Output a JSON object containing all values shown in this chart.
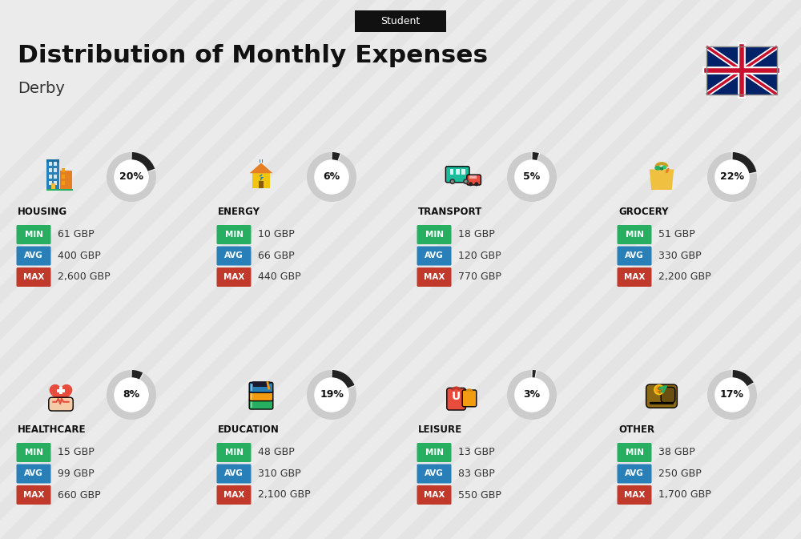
{
  "title": "Distribution of Monthly Expenses",
  "subtitle": "Derby",
  "label_top": "Student",
  "background_color": "#ebebeb",
  "categories": [
    {
      "name": "HOUSING",
      "percent": 20,
      "min_val": "61 GBP",
      "avg_val": "400 GBP",
      "max_val": "2,600 GBP",
      "row": 0,
      "col": 0
    },
    {
      "name": "ENERGY",
      "percent": 6,
      "min_val": "10 GBP",
      "avg_val": "66 GBP",
      "max_val": "440 GBP",
      "row": 0,
      "col": 1
    },
    {
      "name": "TRANSPORT",
      "percent": 5,
      "min_val": "18 GBP",
      "avg_val": "120 GBP",
      "max_val": "770 GBP",
      "row": 0,
      "col": 2
    },
    {
      "name": "GROCERY",
      "percent": 22,
      "min_val": "51 GBP",
      "avg_val": "330 GBP",
      "max_val": "2,200 GBP",
      "row": 0,
      "col": 3
    },
    {
      "name": "HEALTHCARE",
      "percent": 8,
      "min_val": "15 GBP",
      "avg_val": "99 GBP",
      "max_val": "660 GBP",
      "row": 1,
      "col": 0
    },
    {
      "name": "EDUCATION",
      "percent": 19,
      "min_val": "48 GBP",
      "avg_val": "310 GBP",
      "max_val": "2,100 GBP",
      "row": 1,
      "col": 1
    },
    {
      "name": "LEISURE",
      "percent": 3,
      "min_val": "13 GBP",
      "avg_val": "83 GBP",
      "max_val": "550 GBP",
      "row": 1,
      "col": 2
    },
    {
      "name": "OTHER",
      "percent": 17,
      "min_val": "38 GBP",
      "avg_val": "250 GBP",
      "max_val": "1,700 GBP",
      "row": 1,
      "col": 3
    }
  ],
  "min_color": "#27ae60",
  "avg_color": "#2980b9",
  "max_color": "#c0392b",
  "badge_text_color": "#ffffff",
  "title_color": "#111111",
  "subtitle_color": "#333333",
  "label_bg": "#111111",
  "label_text_color": "#ffffff",
  "donut_bg": "#cccccc",
  "donut_fill": "#222222",
  "donut_gap_color": "#ebebeb",
  "category_name_color": "#111111",
  "value_text_color": "#333333",
  "stripe_color": "#e0e0e0"
}
